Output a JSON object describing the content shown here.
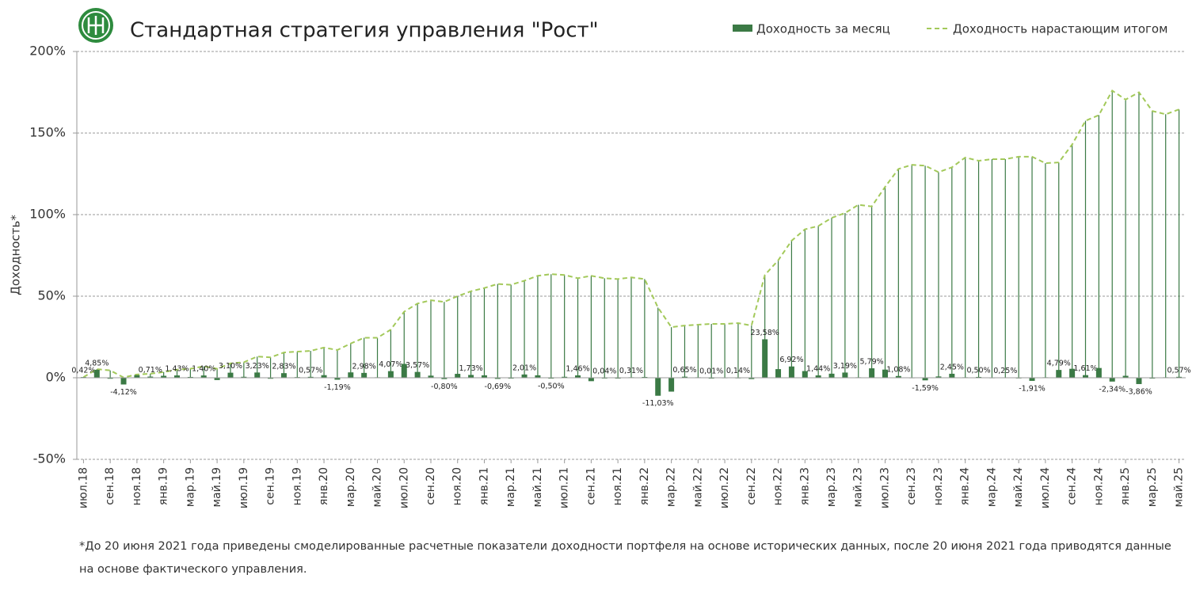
{
  "chart_data": {
    "type": "bar",
    "title": "Стандартная стратегия управления \"Рост\"",
    "y_label": "Доходность*",
    "footnote": "*До 20 июня 2021 года приведены смоделированные расчетные показатели доходности портфеля на основе исторических данных, после 20 июня 2021 года приводятся данные на основе фактического управления.",
    "categories": [
      "июл.18",
      null,
      "сен.18",
      null,
      "ноя.18",
      null,
      "янв.19",
      null,
      "мар.19",
      null,
      "май.19",
      null,
      "июл.19",
      null,
      "сен.19",
      null,
      "ноя.19",
      null,
      "янв.20",
      null,
      "мар.20",
      null,
      "май.20",
      null,
      "июл.20",
      null,
      "сен.20",
      null,
      "ноя.20",
      null,
      "янв.21",
      null,
      "мар.21",
      null,
      "май.21",
      null,
      "июл.21",
      null,
      "сен.21",
      null,
      "ноя.21",
      null,
      "янв.22",
      null,
      "мар.22",
      null,
      "май.22",
      null,
      "июл.22",
      null,
      "сен.22",
      null,
      "ноя.22",
      null,
      "янв.23",
      null,
      "мар.23",
      null,
      "май.23",
      null,
      "июл.23",
      null,
      "сен.23",
      null,
      "ноя.23",
      null,
      "янв.24",
      null,
      "мар.24",
      null,
      "май.24",
      null,
      "июл.24",
      null,
      "сен.24",
      null,
      "ноя.24",
      null,
      "янв.25",
      null,
      "мар.25",
      null,
      "май.25"
    ],
    "series": [
      {
        "name": "Доходность за месяц",
        "type": "bar",
        "color": "#3b7a45",
        "values": [
          0.42,
          4.85,
          -0.6,
          -4.12,
          1.6,
          0.71,
          1.2,
          1.43,
          0.5,
          1.4,
          -1.4,
          3.1,
          0.6,
          3.23,
          -0.6,
          2.83,
          0.4,
          0.57,
          1.6,
          -1.19,
          3.3,
          2.98,
          0.3,
          4.07,
          8.5,
          3.57,
          1.3,
          -0.8,
          2.4,
          1.73,
          1.5,
          -0.69,
          -0.3,
          2.01,
          1.5,
          -0.5,
          0.6,
          1.46,
          -2.1,
          0.04,
          -0.3,
          0.31,
          0.5,
          -11.03,
          -8.5,
          0.65,
          0.3,
          0.01,
          0.2,
          0.14,
          -0.8,
          23.58,
          5.3,
          6.92,
          4.1,
          1.44,
          2.5,
          3.19,
          0.3,
          5.79,
          5.0,
          1.08,
          0.2,
          -1.59,
          0.8,
          2.45,
          0.3,
          0.5,
          0.2,
          0.25,
          0.1,
          -1.91,
          0.3,
          4.79,
          5.5,
          1.61,
          6.0,
          -2.34,
          1.2,
          -3.86,
          -0.2,
          0.3,
          0.57
        ],
        "value_labels": [
          "0,42%",
          "4,85%",
          null,
          "-4,12%",
          null,
          "0,71%",
          null,
          "1,43%",
          null,
          "1,40%",
          null,
          "3,10%",
          null,
          "3,23%",
          null,
          "2,83%",
          null,
          "0,57%",
          null,
          "-1,19%",
          null,
          "2,98%",
          null,
          "4,07%",
          null,
          "3,57%",
          null,
          "-0,80%",
          null,
          "1,73%",
          null,
          "-0,69%",
          null,
          "2,01%",
          null,
          "-0,50%",
          null,
          "1,46%",
          null,
          "0,04%",
          null,
          "0,31%",
          null,
          "-11,03%",
          null,
          "0,65%",
          null,
          "0,01%",
          null,
          "0,14%",
          null,
          "23,58%",
          null,
          "6,92%",
          null,
          "1,44%",
          null,
          "3,19%",
          null,
          "5,79%",
          null,
          "1,08%",
          null,
          "-1,59%",
          null,
          "2,45%",
          null,
          "0,50%",
          null,
          "0,25%",
          null,
          "-1,91%",
          null,
          "4,79%",
          null,
          "1,61%",
          null,
          "-2,34%",
          null,
          "-3,86%",
          null,
          null,
          "0,57%"
        ]
      },
      {
        "name": "Доходность нарастающим итогом",
        "type": "line",
        "color": "#a3c95a",
        "values": [
          0.4,
          5.3,
          4.5,
          0.2,
          2,
          2.5,
          3.5,
          5,
          5.5,
          7,
          5.5,
          8.8,
          9.5,
          13,
          12.5,
          15.5,
          16,
          16.5,
          18.5,
          17,
          21,
          24.5,
          24.5,
          29.5,
          40.5,
          45.5,
          47.5,
          46.5,
          50,
          53,
          55,
          57.5,
          57,
          59.5,
          62.5,
          63.5,
          63,
          61,
          62.5,
          61,
          60.5,
          61.5,
          60.5,
          43,
          31,
          32,
          32.5,
          33,
          33,
          33.5,
          32,
          63,
          72,
          84,
          91,
          93,
          98,
          101,
          106,
          105,
          117,
          128,
          130.5,
          130,
          126,
          129,
          135,
          133,
          134,
          134,
          135.5,
          135.5,
          131.5,
          132,
          143,
          157.5,
          161,
          176,
          170.5,
          175,
          163.5,
          161.5,
          164.5
        ]
      }
    ],
    "ylim": [
      -50,
      200
    ],
    "yticks": [
      {
        "value": -50,
        "label": "-50%"
      },
      {
        "value": 0,
        "label": "0%"
      },
      {
        "value": 50,
        "label": "50%"
      },
      {
        "value": 100,
        "label": "100%"
      },
      {
        "value": 150,
        "label": "150%"
      },
      {
        "value": 200,
        "label": "200%"
      }
    ],
    "grid": true
  }
}
